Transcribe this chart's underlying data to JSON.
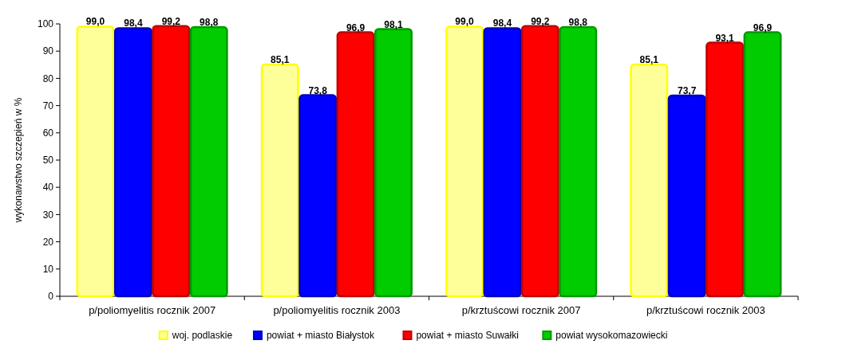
{
  "chart_data": {
    "type": "bar",
    "ylabel": "wykonawstwo szczepień w %",
    "categories": [
      "p/poliomyelitis rocznik 2007",
      "p/poliomyelitis rocznik 2003",
      "p/krztuścowi rocznik 2007",
      "p/krztuścowi rocznik 2003"
    ],
    "series": [
      {
        "name": "woj. podlaskie",
        "color": "#ffff99",
        "values": [
          99.0,
          85.1,
          99.0,
          85.1
        ],
        "value_labels": [
          "99,0",
          "85,1",
          "99,0",
          "85,1"
        ]
      },
      {
        "name": "powiat + miasto Białystok",
        "color": "#0000ff",
        "values": [
          98.4,
          73.8,
          98.4,
          73.7
        ],
        "value_labels": [
          "98,4",
          "73,8",
          "98,4",
          "73,7"
        ]
      },
      {
        "name": "powiat + miasto Suwałki",
        "color": "#ff0000",
        "values": [
          99.2,
          96.9,
          99.2,
          93.1
        ],
        "value_labels": [
          "99,2",
          "96,9",
          "99,2",
          "93,1"
        ]
      },
      {
        "name": "powiat wysokomazowiecki",
        "color": "#00cc00",
        "values": [
          98.8,
          98.1,
          98.8,
          96.9
        ],
        "value_labels": [
          "98,8",
          "98,1",
          "98,8",
          "96,9"
        ]
      }
    ],
    "ylim": [
      0,
      100
    ],
    "yticks": [
      0,
      10,
      20,
      30,
      40,
      50,
      60,
      70,
      80,
      90,
      100
    ],
    "legend": "bottom",
    "grid": false
  }
}
